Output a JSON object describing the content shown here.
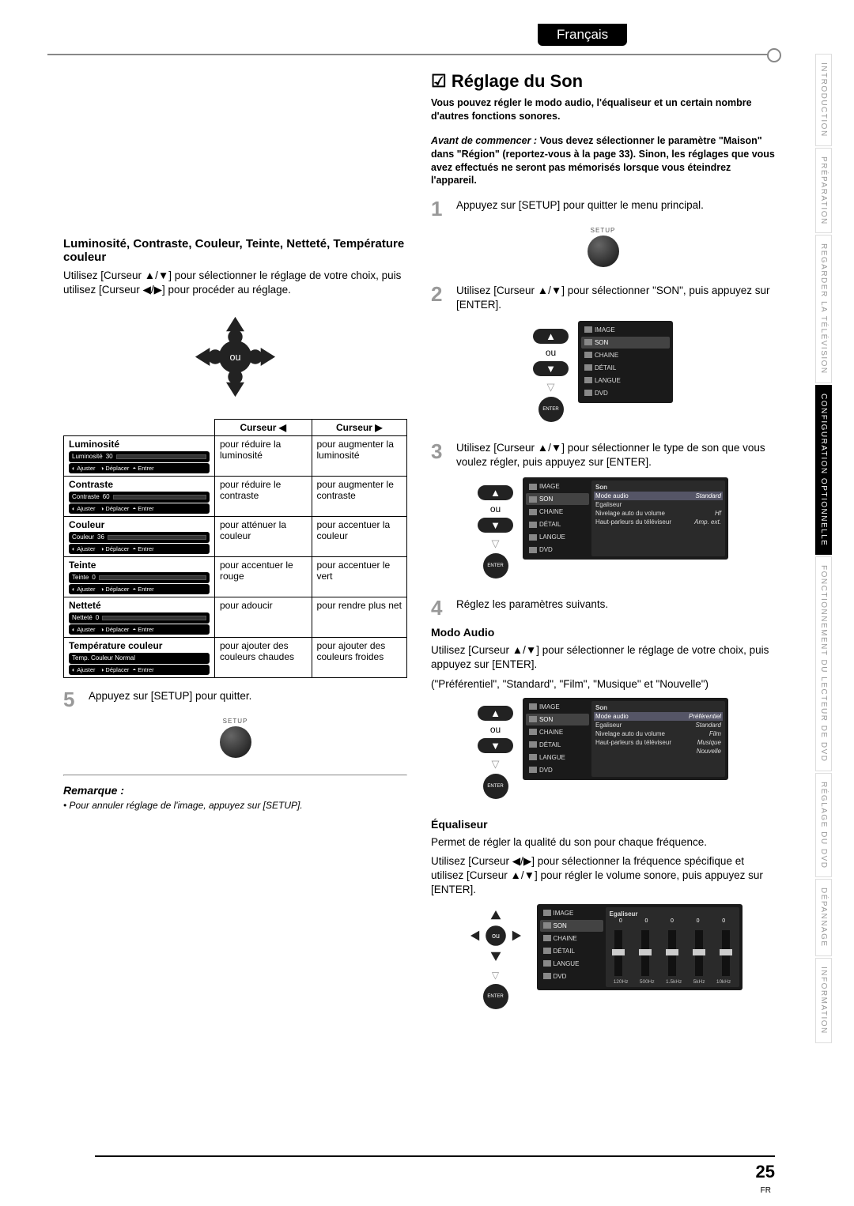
{
  "lang_tab": "Français",
  "side_tabs": [
    {
      "label": "INTRODUCTION",
      "active": false
    },
    {
      "label": "PRÉPARATION",
      "active": false
    },
    {
      "label": "REGARDER LA TÉLÉVISION",
      "active": false
    },
    {
      "label": "CONFIGURATION OPTIONNELLE",
      "active": true
    },
    {
      "label": "FONCTIONNEMENT DU LECTEUR DE DVD",
      "active": false
    },
    {
      "label": "RÉGLAGE DU DVD",
      "active": false
    },
    {
      "label": "DÉPANNAGE",
      "active": false
    },
    {
      "label": "INFORMATION",
      "active": false
    }
  ],
  "right": {
    "title": "Réglage du Son",
    "intro": "Vous pouvez régler le modo audio, l'équaliseur et un certain nombre d'autres fonctions sonores.",
    "avant_label": "Avant de commencer :",
    "avant_text": "Vous devez sélectionner le paramètre \"Maison\" dans \"Région\" (reportez-vous à la page 33). Sinon, les réglages que vous avez effectués ne seront pas mémorisés lorsque vous éteindrez l'appareil.",
    "setup_label": "SETUP",
    "enter_label": "ENTER",
    "ou": "ou",
    "steps": {
      "s1": "Appuyez sur [SETUP] pour quitter le menu principal.",
      "s2": "Utilisez [Curseur ▲/▼] pour sélectionner \"SON\", puis appuyez sur [ENTER].",
      "s3": "Utilisez [Curseur ▲/▼] pour sélectionner le type de son que vous voulez régler, puis appuyez sur [ENTER].",
      "s4": "Réglez les paramètres suivants."
    },
    "modo": {
      "h": "Modo Audio",
      "p1": "Utilisez [Curseur ▲/▼] pour sélectionner le réglage de votre choix, puis appuyez sur [ENTER].",
      "p2": "(\"Préférentiel\", \"Standard\", \"Film\", \"Musique\" et \"Nouvelle\")"
    },
    "equaliser": {
      "h": "Équaliseur",
      "p1": "Permet de régler la qualité du son pour chaque fréquence.",
      "p2": "Utilisez [Curseur ◀/▶] pour sélectionner la fréquence spécifique et utilisez [Curseur ▲/▼] pour régler le volume sonore, puis appuyez sur [ENTER]."
    },
    "osd_menu": [
      "IMAGE",
      "SON",
      "CHAINE",
      "DÉTAIL",
      "LANGUE",
      "DVD"
    ],
    "osd_son_title": "Son",
    "osd3_lines": [
      [
        "Mode audio",
        "Standard"
      ],
      [
        "Egaliseur",
        ""
      ],
      [
        "Nivelage auto du volume",
        "Hf"
      ],
      [
        "Haut-parleurs du téléviseur",
        "Amp. ext."
      ]
    ],
    "osd4_lines": [
      [
        "Mode audio",
        "Préférentiel"
      ],
      [
        "Egaliseur",
        "Standard"
      ],
      [
        "Nivelage auto du volume",
        "Film"
      ],
      [
        "Haut-parleurs du téléviseur",
        "Musique"
      ],
      [
        "",
        "Nouvelle"
      ]
    ],
    "eq_title": "Egaliseur",
    "eq_freqs": [
      "120Hz",
      "500Hz",
      "1.5kHz",
      "5kHz",
      "10kHz"
    ],
    "eq_vals": [
      "0",
      "0",
      "0",
      "0",
      "0"
    ]
  },
  "left": {
    "heading": "Luminosité, Contraste, Couleur, Teinte, Netteté, Température couleur",
    "body": "Utilisez [Curseur ▲/▼] pour sélectionner le réglage de votre choix, puis utilisez [Curseur ◀/▶] pour procéder au réglage.",
    "ou": "ou",
    "table_head_left": "Curseur ◀",
    "table_head_right": "Curseur ▶",
    "rows": [
      {
        "name": "Luminosité",
        "val": "30",
        "fill": 30,
        "left": "pour réduire la luminosité",
        "right": "pour augmenter la luminosité"
      },
      {
        "name": "Contraste",
        "val": "60",
        "fill": 60,
        "left": "pour réduire le contraste",
        "right": "pour augmenter le contraste"
      },
      {
        "name": "Couleur",
        "val": "36",
        "fill": 36,
        "left": "pour atténuer la couleur",
        "right": "pour accentuer la couleur"
      },
      {
        "name": "Teinte",
        "val": "0",
        "fill": 50,
        "left": "pour accentuer le rouge",
        "right": "pour accentuer le vert"
      },
      {
        "name": "Netteté",
        "val": "0",
        "fill": 2,
        "left": "pour adoucir",
        "right": "pour rendre plus net"
      },
      {
        "name": "Température couleur",
        "val": "Normal",
        "fill": -1,
        "left": "pour ajouter des couleurs chaudes",
        "right": "pour ajouter des couleurs froides"
      }
    ],
    "ajuster": "Ajuster",
    "deplacer": "Déplacer",
    "entrer": "Entrer",
    "step5": "Appuyez sur [SETUP] pour quitter.",
    "remarque_h": "Remarque :",
    "remarque_t": "Pour annuler réglage de l'image, appuyez sur [SETUP]."
  },
  "page_num": "25",
  "fr": "FR"
}
